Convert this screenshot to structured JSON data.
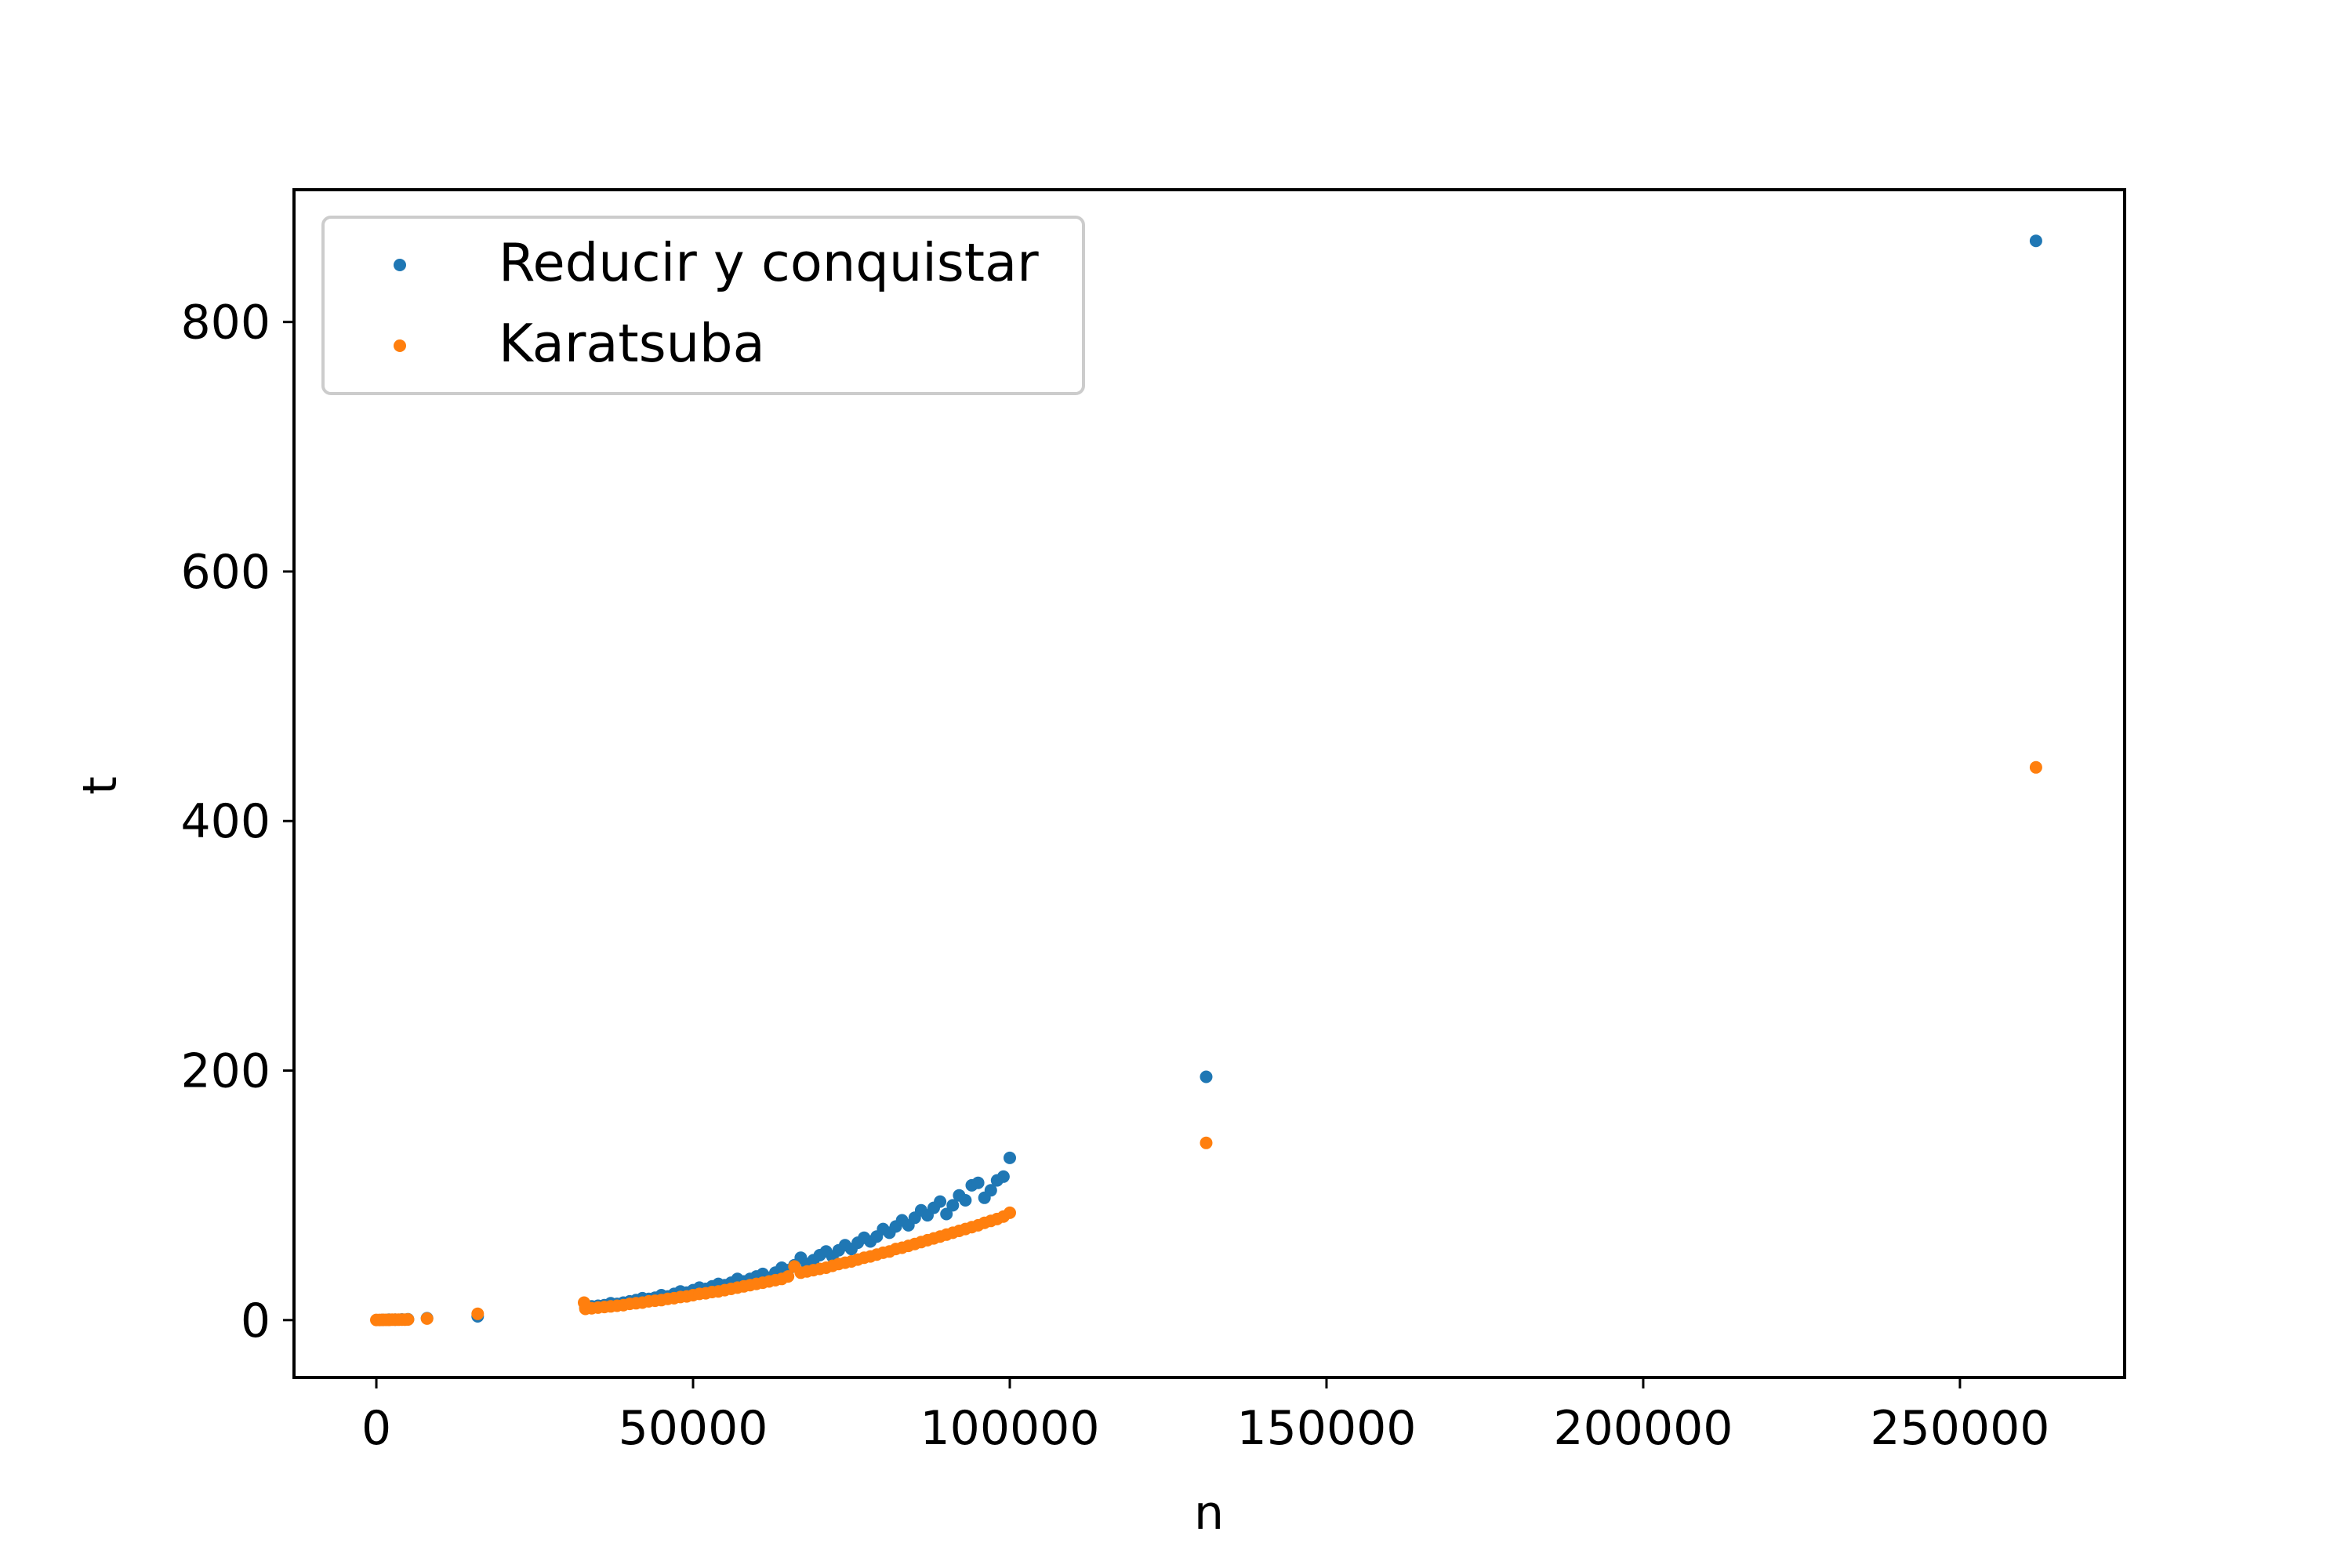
{
  "chart_data": {
    "type": "scatter",
    "title": "",
    "xlabel": "n",
    "ylabel": "t",
    "xlim": [
      -13000,
      276000
    ],
    "ylim": [
      -46,
      906
    ],
    "xticks": [
      0,
      50000,
      100000,
      150000,
      200000,
      250000
    ],
    "xtick_labels": [
      "0",
      "50000",
      "100000",
      "150000",
      "200000",
      "250000"
    ],
    "yticks": [
      0,
      200,
      400,
      600,
      800
    ],
    "ytick_labels": [
      "0",
      "200",
      "400",
      "600",
      "800"
    ],
    "grid": false,
    "legend_position": "top-left",
    "series": [
      {
        "name": "Reducir y conquistar",
        "color": "#1f77b4",
        "x": [
          1000,
          2000,
          3000,
          4000,
          5000,
          8000,
          16000,
          33000,
          34000,
          35000,
          36000,
          37000,
          38000,
          39000,
          40000,
          41000,
          42000,
          43000,
          44000,
          45000,
          46000,
          47000,
          48000,
          49000,
          50000,
          51000,
          52000,
          53000,
          54000,
          55000,
          56000,
          57000,
          58000,
          59000,
          60000,
          61000,
          62000,
          63000,
          64000,
          65000,
          66000,
          67000,
          68000,
          69000,
          70000,
          71000,
          72000,
          73000,
          74000,
          75000,
          76000,
          77000,
          78000,
          79000,
          80000,
          81000,
          82000,
          83000,
          84000,
          85000,
          86000,
          87000,
          88000,
          89000,
          90000,
          91000,
          92000,
          93000,
          94000,
          95000,
          96000,
          97000,
          98000,
          99000,
          100000,
          131000,
          262000
        ],
        "y": [
          0.2,
          0.3,
          0.4,
          0.5,
          0.6,
          1.5,
          3,
          10,
          11,
          11.5,
          12,
          13.5,
          13,
          14,
          15,
          16,
          17.5,
          17,
          18,
          20,
          19,
          21,
          23,
          22,
          24,
          26,
          25,
          27,
          29,
          28,
          30,
          33,
          31,
          33,
          35,
          37,
          34,
          38,
          42,
          40,
          44,
          50,
          45,
          48,
          52,
          55,
          51,
          56,
          60,
          57,
          62,
          66,
          63,
          67,
          73,
          70,
          75,
          80,
          76,
          82,
          88,
          84,
          90,
          95,
          85,
          92,
          100,
          96,
          108,
          110,
          98,
          104,
          112,
          115,
          130,
          195,
          865
        ]
      },
      {
        "name": "Karatsuba",
        "color": "#ff7f0e",
        "x": [
          0,
          500,
          1000,
          1500,
          2000,
          2500,
          3000,
          3500,
          4000,
          4500,
          5000,
          8000,
          16000,
          32800,
          33000,
          34000,
          35000,
          36000,
          37000,
          38000,
          39000,
          40000,
          41000,
          42000,
          43000,
          44000,
          45000,
          46000,
          47000,
          48000,
          49000,
          50000,
          51000,
          52000,
          53000,
          54000,
          55000,
          56000,
          57000,
          58000,
          59000,
          60000,
          61000,
          62000,
          63000,
          64000,
          65000,
          66000,
          67000,
          68000,
          69000,
          70000,
          71000,
          72000,
          73000,
          74000,
          75000,
          76000,
          77000,
          78000,
          79000,
          80000,
          81000,
          82000,
          83000,
          84000,
          85000,
          86000,
          87000,
          88000,
          89000,
          90000,
          91000,
          92000,
          93000,
          94000,
          95000,
          96000,
          97000,
          98000,
          99000,
          100000,
          131000,
          262000
        ],
        "y": [
          0.1,
          0.1,
          0.2,
          0.2,
          0.2,
          0.3,
          0.3,
          0.3,
          0.4,
          0.4,
          0.5,
          1.2,
          5,
          14,
          9,
          9.5,
          10,
          10.5,
          11,
          11.5,
          12,
          13,
          13.5,
          14,
          15,
          15.5,
          16,
          17,
          17.5,
          18.5,
          19,
          20,
          21,
          21.5,
          22.5,
          23,
          24,
          25,
          26,
          27,
          28,
          29,
          30,
          31,
          32,
          33,
          35,
          43,
          38,
          39,
          40,
          41,
          42,
          43.5,
          45,
          46,
          47,
          48.5,
          50,
          51,
          52.5,
          54,
          55,
          57,
          58,
          59.5,
          61,
          62.5,
          64,
          65.5,
          67,
          68.5,
          70,
          71.5,
          73,
          74.5,
          76,
          78,
          79.5,
          81,
          83,
          86,
          142,
          443
        ]
      }
    ]
  }
}
